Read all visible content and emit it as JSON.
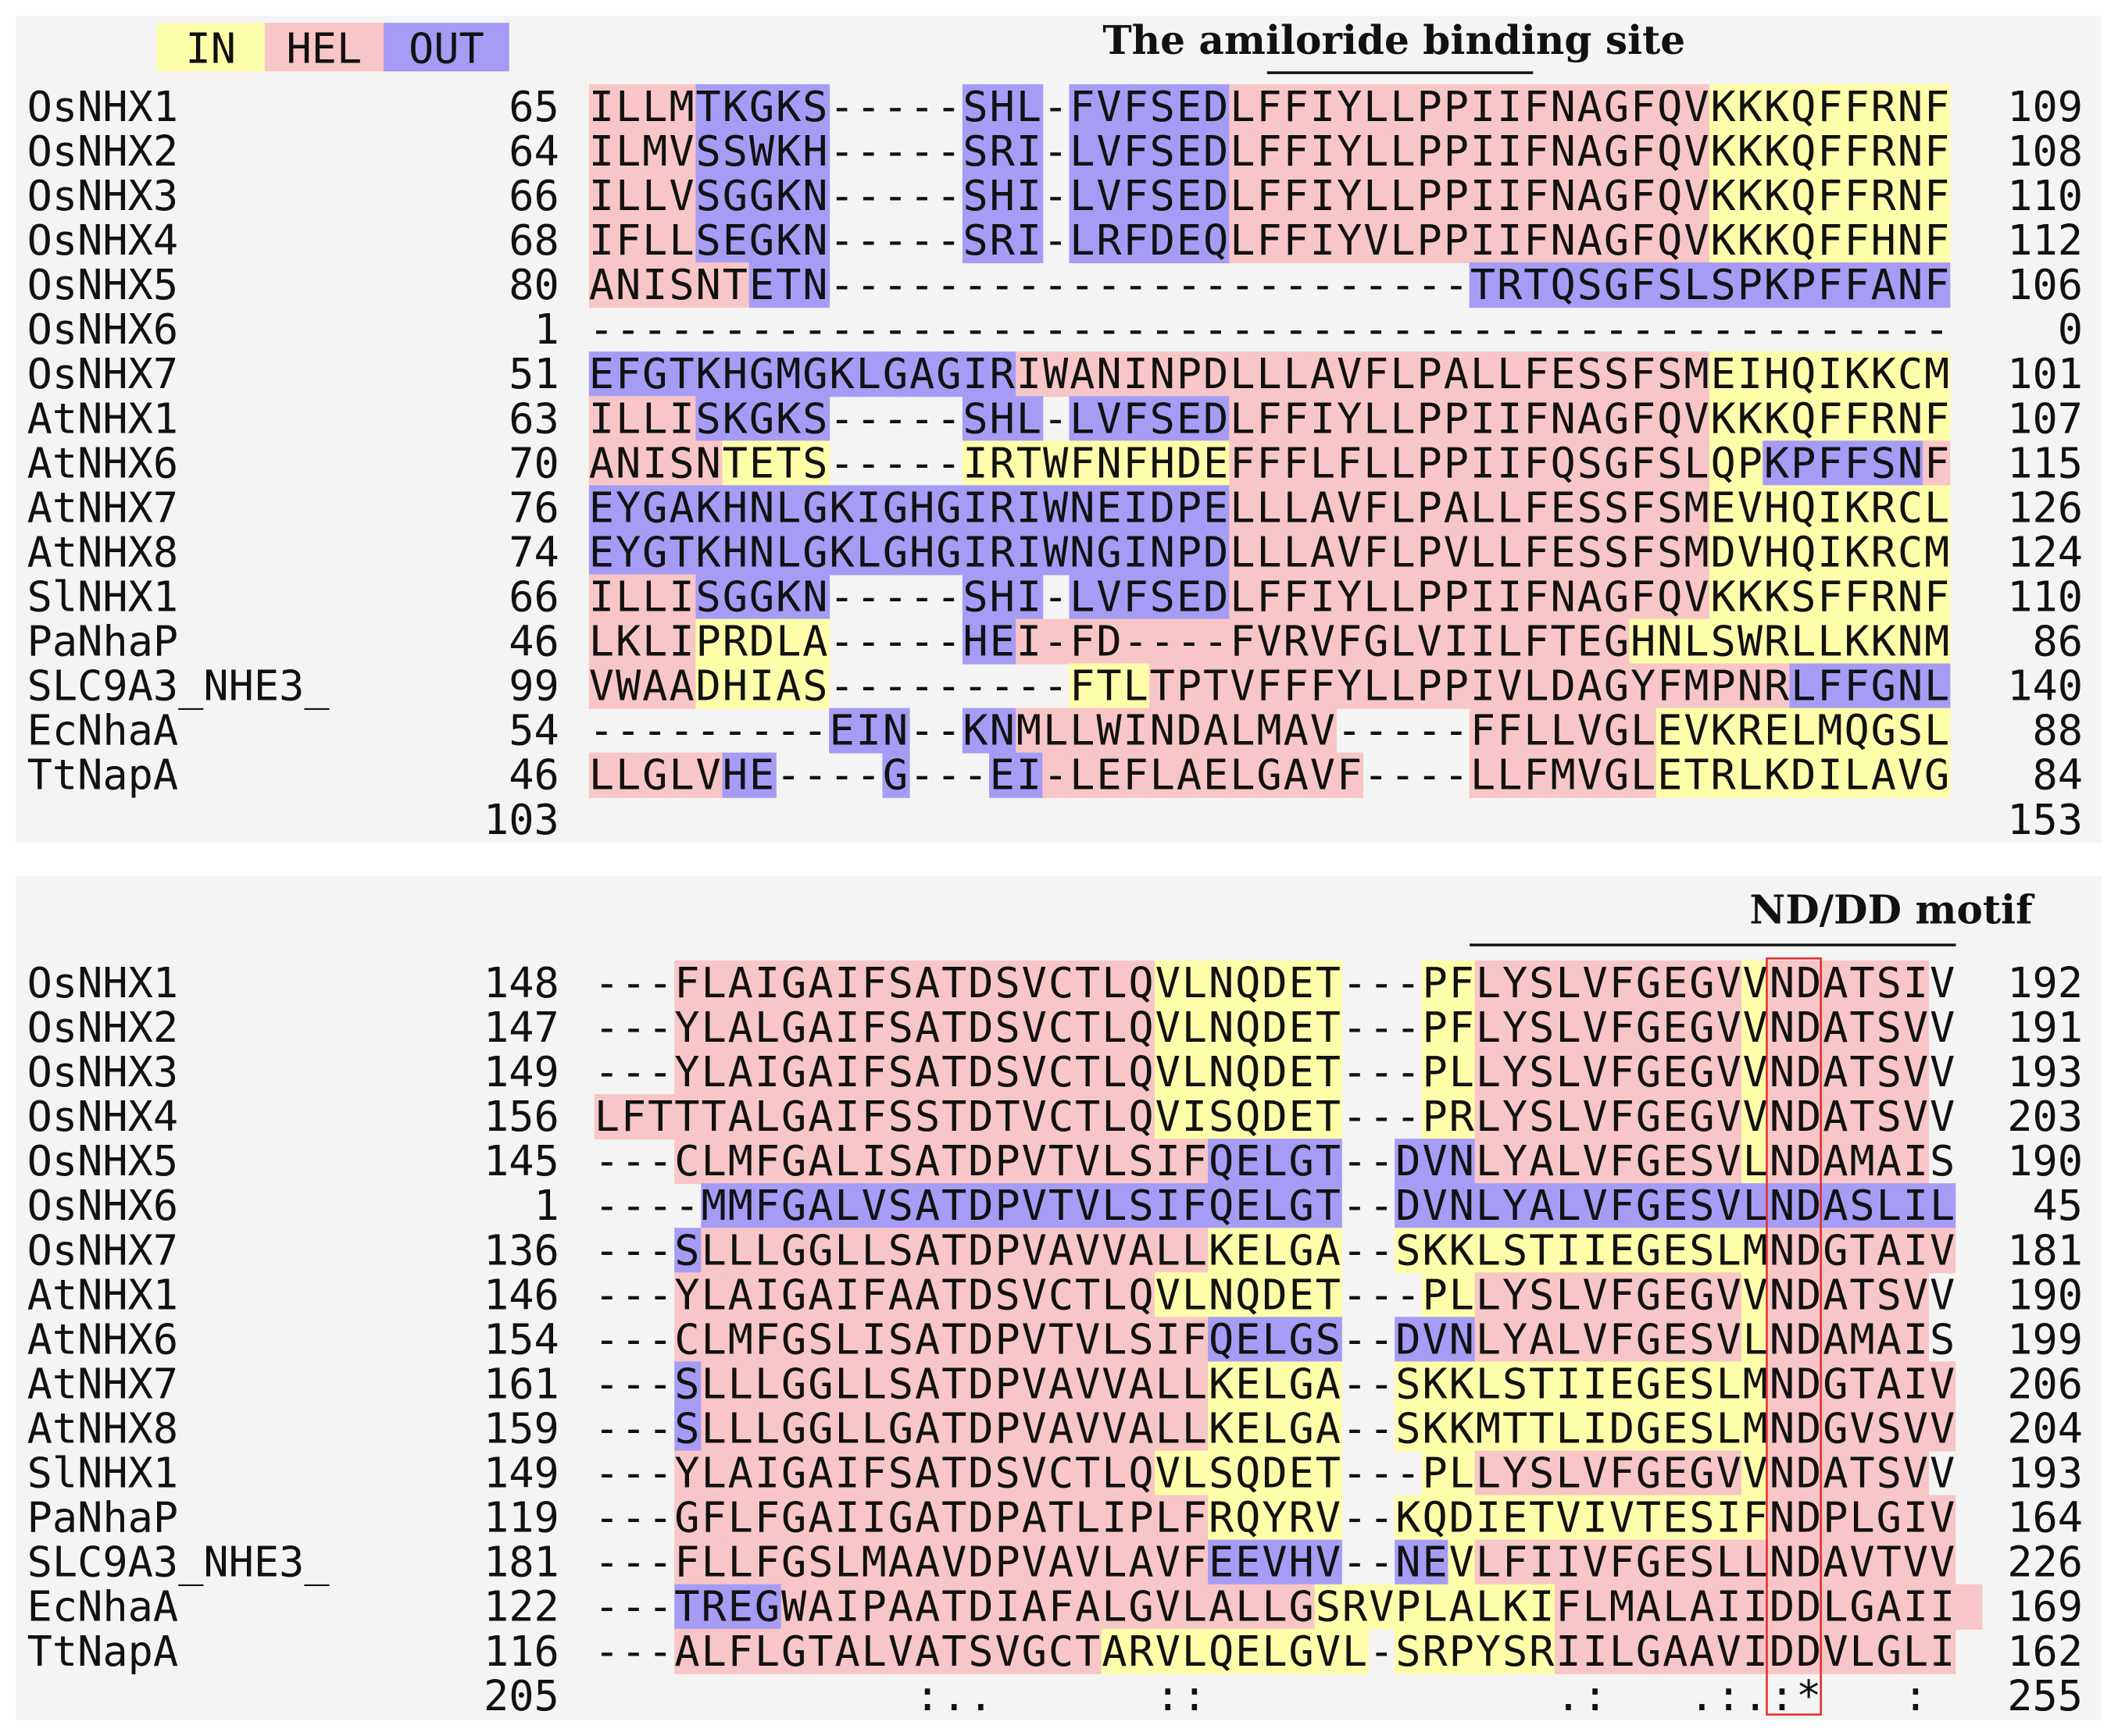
{
  "legend": [
    {
      "label": "IN",
      "color": "#fdfdaa"
    },
    {
      "label": "HEL",
      "color": "#f8c6c6"
    },
    {
      "label": "OUT",
      "color": "#a69cf6"
    }
  ],
  "blocks": [
    {
      "annotation": "The amiloride binding site",
      "rows": [
        {
          "name": "OsNHX1",
          "start": 65,
          "sequence": "ILLMTKGKS-----SHL-FVFSEDLFFIYLLPPIIFNAGFQVKKKQFFRNF",
          "end": 109,
          "topology": "111122222-----222-222222111111111111111111000000000"
        },
        {
          "name": "OsNHX2",
          "start": 64,
          "sequence": "ILMVSSWKH-----SRI-LVFSEDLFFIYLLPPIIFNAGFQVKKKQFFRNF",
          "end": 108,
          "topology": "111122222-----222-222222111111111111111111000000000"
        },
        {
          "name": "OsNHX3",
          "start": 66,
          "sequence": "ILLVSGGKN-----SHI-LVFSEDLFFIYLLPPIIFNAGFQVKKKQFFRNF",
          "end": 110,
          "topology": "111122222-----222-222222111111111111111111000000000"
        },
        {
          "name": "OsNHX4",
          "start": 68,
          "sequence": "IFLLSEGKN-----SRI-LRFDEQLFFIYVLPPIIFNAGFQVKKKQFFHNF",
          "end": 112,
          "topology": "111122222-----222-222222111111111111111111000000000"
        },
        {
          "name": "OsNHX5",
          "start": 80,
          "sequence": "ANISNTETN------------------------TRTQSGFSLSPKPFFANF",
          "end": 106,
          "topology": "111111222------------------------222222222222222222"
        },
        {
          "name": "OsNHX6",
          "start": 1,
          "sequence": "---------------------------------------------------",
          "end": 0,
          "topology": "---------------------------------------------------"
        },
        {
          "name": "OsNHX7",
          "start": 51,
          "sequence": "EFGTKHGMGKLGAGIRIWANINPDLLLAVFLPALLFESSFSMEIHQIKKCM",
          "end": 101,
          "topology": "222222222222222211111111111111111111111111000000000"
        },
        {
          "name": "AtNHX1",
          "start": 63,
          "sequence": "ILLISKGKS-----SHL-LVFSEDLFFIYLLPPIIFNAGFQVKKKQFFRNF",
          "end": 107,
          "topology": "111122222-----222-222222111111111111111111000000000"
        },
        {
          "name": "AtNHX6",
          "start": 70,
          "sequence": "ANISNTETS-----IRTWFNFHDEFFFLFLLPPIIFQSGFSLQPKPFFSNF",
          "end": 115,
          "topology": "111110000-----0000000000111111111111111111002222221"
        },
        {
          "name": "AtNHX7",
          "start": 76,
          "sequence": "EYGAKHNLGKIGHGIRIWNEIDPELLLAVFLPALLFESSFSMEVHQIKRCL",
          "end": 126,
          "topology": "222222222222222222222222111111111111111111000000000"
        },
        {
          "name": "AtNHX8",
          "start": 74,
          "sequence": "EYGTKHNLGKLGHGIRIWNGINPDLLLAVFLPVLLFESSFSMDVHQIKRCM",
          "end": 124,
          "topology": "222222222222222222222222111111111111111111000000000"
        },
        {
          "name": "SlNHX1",
          "start": 66,
          "sequence": "ILLISGGKN-----SHI-LVFSEDLFFIYLLPPIIFNAGFQVKKKSFFRNF",
          "end": 110,
          "topology": "111122222-----222-222222111111111111111111000000000"
        },
        {
          "name": "PaNhaP",
          "start": 46,
          "sequence": "LKLIPRDLA-----HEI-FD----FVRVFGLVIILFTEGHNLSWRLLKKNM",
          "end": 86,
          "topology": "111100000-----2211111111111111111111111000000000000"
        },
        {
          "name": "SLC9A3_NHE3_",
          "start": 99,
          "sequence": "VWAADHIAS---------FTLTPTVFFFYLLPPIVLDAGYFMPNRLFFGNL",
          "end": 140,
          "topology": "111100000---------000111111111111111111111111222222"
        },
        {
          "name": "EcNhaA",
          "start": 54,
          "sequence": "---------EIN--KNMLLWINDALMAV-----FFLLVGLEVKRELMQGSL",
          "end": 88,
          "topology": "---------222--22111111111111-----111111100000000000"
        },
        {
          "name": "TtNapA",
          "start": 46,
          "sequence": "LLGLVHE----G---EI-LEFLAELGAVF----LLFMVGLETRLKDILAVG",
          "end": 84,
          "topology": "1111122----2---22111111111111----111111100000000000"
        }
      ],
      "footer": {
        "start": 103,
        "end": 153
      }
    },
    {
      "annotation": "ND/DD motif",
      "rows": [
        {
          "name": "OsNHX1",
          "start": 148,
          "sequence": "---FLAIGAIFSATDSVCTLQVLNQDET---PFLYSLVFGEGVVNDATSIV",
          "end": 192,
          "topology": "---1111111111111111110000000---0011111111110111111"
        },
        {
          "name": "OsNHX2",
          "start": 147,
          "sequence": "---YLALGAIFSATDSVCTLQVLNQDET---PFLYSLVFGEGVVNDATSVV",
          "end": 191,
          "topology": "---1111111111111111110000000---0011111111110111111"
        },
        {
          "name": "OsNHX3",
          "start": 149,
          "sequence": "---YLAIGAIFSATDSVCTLQVLNQDET---PLLYSLVFGEGVVNDATSVV",
          "end": 193,
          "topology": "---1111111111111111110000000---0011111111110111111"
        },
        {
          "name": "OsNHX4",
          "start": 156,
          "sequence": "LFTTTALGAIFSSTDTVCTLQVISQDET---PRLYSLVFGEGVVNDATSVV",
          "end": 203,
          "topology": "1111111111111111111110000000---0011111111110111111"
        },
        {
          "name": "OsNHX5",
          "start": 145,
          "sequence": "---CLMFGALISATDPVTVLSIFQELGT--DVNLYALVFGESVLNDAMAIS",
          "end": 190,
          "topology": "---1111111111111111111122222--22211111111110111111"
        },
        {
          "name": "OsNHX6",
          "start": 1,
          "sequence": "----MMFGALVSATDPVTVLSIFQELGT--DVNLYALVFGESVLNDASLIL",
          "end": 45,
          "topology": "----222222222222222222222222--222222222222222222222"
        },
        {
          "name": "OsNHX7",
          "start": 136,
          "sequence": "---SLLLGGLLSATDPVAVVALLKELGA--SKKLSTIIEGESLMNDGTAIV",
          "end": 181,
          "topology": "---2111111111111111111100000--000000000000001111111"
        },
        {
          "name": "AtNHX1",
          "start": 146,
          "sequence": "---YLAIGAIFAATDSVCTLQVLNQDET---PLLYSLVFGEGVVNDATSVV",
          "end": 190,
          "topology": "---1111111111111111110000000---0011111111110111111"
        },
        {
          "name": "AtNHX6",
          "start": 154,
          "sequence": "---CLMFGSLISATDPVTVLSIFQELGS--DVNLYALVFGESVLNDAMAIS",
          "end": 199,
          "topology": "---1111111111111111111122222--22211111111110111111"
        },
        {
          "name": "AtNHX7",
          "start": 161,
          "sequence": "---SLLLGGLLSATDPVAVVALLKELGA--SKKLSTIIEGESLMNDGTAIV",
          "end": 206,
          "topology": "---2111111111111111111100000--000000000000001111111"
        },
        {
          "name": "AtNHX8",
          "start": 159,
          "sequence": "---SLLLGGLLGATDPVAVVALLKELGA--SKKMTTLIDGESLMNDGVSVV",
          "end": 204,
          "topology": "---2111111111111111111100000--000000000000001111111"
        },
        {
          "name": "SlNHX1",
          "start": 149,
          "sequence": "---YLAIGAIFSATDSVCTLQVLSQDET---PLLYSLVFGEGVVNDATSVV",
          "end": 193,
          "topology": "---1111111111111111110000000---0011111111110111111"
        },
        {
          "name": "PaNhaP",
          "start": 119,
          "sequence": "---GFLFGAIIGATDPATLIPLFRQYRV--KQDIETVIVTESIFNDPLGIV",
          "end": 164,
          "topology": "---1111111111111111111100000--000000000000001111111"
        },
        {
          "name": "SLC9A3_NHE3_",
          "start": 181,
          "sequence": "---FLLFGSLMAAVDPVAVLAVFEEVHV--NEVLFIIVFGESLLNDAVTVV",
          "end": 226,
          "topology": "---1111111111111111111122222--220111111111111111111"
        },
        {
          "name": "EcNhaA",
          "start": 122,
          "sequence": "---TREGWAIPAATDIAFALGVLALLGSRVPLALKIFLMALAIIDDLGAII",
          "end": 169,
          "topology": "---2222111111111111111111110000000001111111111111111"
        },
        {
          "name": "TtNapA",
          "start": 116,
          "sequence": "---ALFLGTALVATSVGCTARVLQELGVL-SRPYSRIILGAAVIDDVLGLI",
          "end": 162,
          "topology": "---11111111111111110000000000-000000111111111111111"
        }
      ],
      "footer": {
        "start": 205,
        "conservation": "            :..      ::             .:   .:.:*   : ",
        "end": 255
      }
    }
  ]
}
